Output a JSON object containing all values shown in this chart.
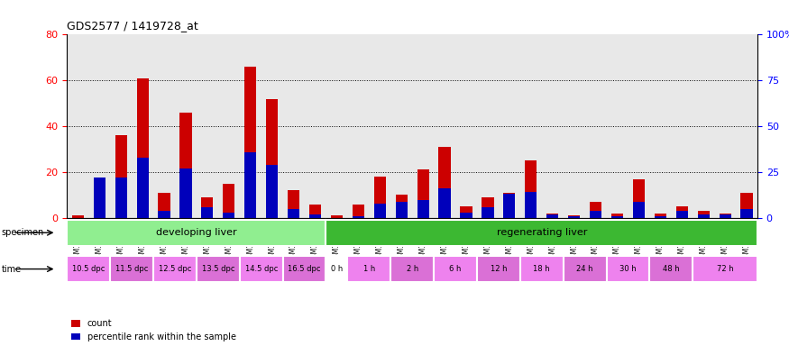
{
  "title": "GDS2577 / 1419728_at",
  "samples": [
    "GSM161128",
    "GSM161129",
    "GSM161130",
    "GSM161131",
    "GSM161132",
    "GSM161133",
    "GSM161134",
    "GSM161135",
    "GSM161136",
    "GSM161137",
    "GSM161138",
    "GSM161139",
    "GSM161108",
    "GSM161109",
    "GSM161110",
    "GSM161111",
    "GSM161112",
    "GSM161113",
    "GSM161114",
    "GSM161115",
    "GSM161116",
    "GSM161117",
    "GSM161118",
    "GSM161119",
    "GSM161120",
    "GSM161121",
    "GSM161122",
    "GSM161123",
    "GSM161124",
    "GSM161125",
    "GSM161126",
    "GSM161127"
  ],
  "count": [
    1,
    13,
    36,
    61,
    11,
    46,
    9,
    15,
    66,
    52,
    12,
    6,
    1,
    6,
    18,
    10,
    21,
    31,
    5,
    9,
    11,
    25,
    2,
    1,
    7,
    2,
    17,
    2,
    5,
    3,
    2,
    11
  ],
  "percentile": [
    0,
    22,
    22,
    33,
    4,
    27,
    6,
    3,
    36,
    29,
    5,
    2,
    0,
    1,
    8,
    9,
    10,
    16,
    3,
    6,
    13,
    14,
    2,
    1,
    4,
    1,
    9,
    1,
    4,
    2,
    2,
    5
  ],
  "specimen_groups": [
    {
      "label": "developing liver",
      "start": 0,
      "end": 12,
      "color": "#90EE90"
    },
    {
      "label": "regenerating liver",
      "start": 12,
      "end": 32,
      "color": "#3CB832"
    }
  ],
  "time_groups": [
    {
      "label": "10.5 dpc",
      "start": 0,
      "end": 2,
      "color": "#EE82EE"
    },
    {
      "label": "11.5 dpc",
      "start": 2,
      "end": 4,
      "color": "#DA70D6"
    },
    {
      "label": "12.5 dpc",
      "start": 4,
      "end": 6,
      "color": "#EE82EE"
    },
    {
      "label": "13.5 dpc",
      "start": 6,
      "end": 8,
      "color": "#DA70D6"
    },
    {
      "label": "14.5 dpc",
      "start": 8,
      "end": 10,
      "color": "#EE82EE"
    },
    {
      "label": "16.5 dpc",
      "start": 10,
      "end": 12,
      "color": "#DA70D6"
    },
    {
      "label": "0 h",
      "start": 12,
      "end": 13,
      "color": "#FFFFFF"
    },
    {
      "label": "1 h",
      "start": 13,
      "end": 15,
      "color": "#EE82EE"
    },
    {
      "label": "2 h",
      "start": 15,
      "end": 17,
      "color": "#DA70D6"
    },
    {
      "label": "6 h",
      "start": 17,
      "end": 19,
      "color": "#EE82EE"
    },
    {
      "label": "12 h",
      "start": 19,
      "end": 21,
      "color": "#DA70D6"
    },
    {
      "label": "18 h",
      "start": 21,
      "end": 23,
      "color": "#EE82EE"
    },
    {
      "label": "24 h",
      "start": 23,
      "end": 25,
      "color": "#DA70D6"
    },
    {
      "label": "30 h",
      "start": 25,
      "end": 27,
      "color": "#EE82EE"
    },
    {
      "label": "48 h",
      "start": 27,
      "end": 29,
      "color": "#DA70D6"
    },
    {
      "label": "72 h",
      "start": 29,
      "end": 32,
      "color": "#EE82EE"
    }
  ],
  "ylim_left": [
    0,
    80
  ],
  "ylim_right": [
    0,
    100
  ],
  "yticks_left": [
    0,
    20,
    40,
    60,
    80
  ],
  "yticks_right": [
    0,
    25,
    50,
    75,
    100
  ],
  "bar_width": 0.55,
  "count_color": "#CC0000",
  "percentile_color": "#0000BB",
  "count_color_legend": "#CC0000",
  "percentile_color_legend": "#0000BB"
}
